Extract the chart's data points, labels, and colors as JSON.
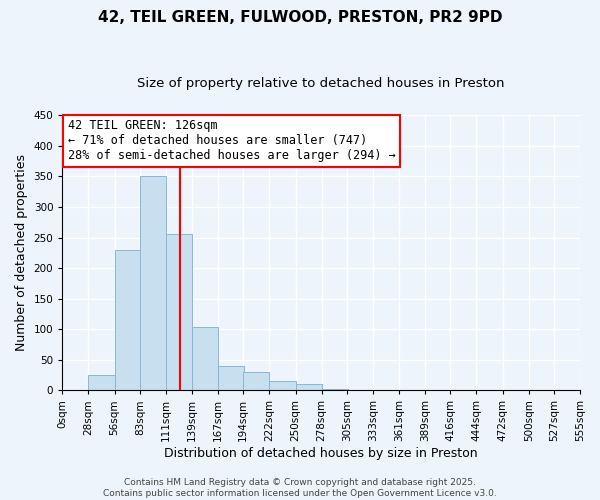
{
  "title": "42, TEIL GREEN, FULWOOD, PRESTON, PR2 9PD",
  "subtitle": "Size of property relative to detached houses in Preston",
  "xlabel": "Distribution of detached houses by size in Preston",
  "ylabel": "Number of detached properties",
  "bar_left_edges": [
    0,
    28,
    56,
    83,
    111,
    139,
    167,
    194,
    222,
    250,
    278,
    305,
    333,
    361,
    389,
    416,
    444,
    472,
    500,
    527
  ],
  "bar_heights": [
    0,
    25,
    230,
    350,
    255,
    103,
    40,
    30,
    15,
    10,
    2,
    0,
    0,
    0,
    0,
    0,
    0,
    0,
    0,
    0
  ],
  "bin_width": 28,
  "bar_color": "#c8dff0",
  "bar_edge_color": "#89b8d4",
  "tick_labels": [
    "0sqm",
    "28sqm",
    "56sqm",
    "83sqm",
    "111sqm",
    "139sqm",
    "167sqm",
    "194sqm",
    "222sqm",
    "250sqm",
    "278sqm",
    "305sqm",
    "333sqm",
    "361sqm",
    "389sqm",
    "416sqm",
    "444sqm",
    "472sqm",
    "500sqm",
    "527sqm",
    "555sqm"
  ],
  "tick_positions": [
    0,
    28,
    56,
    83,
    111,
    139,
    167,
    194,
    222,
    250,
    278,
    305,
    333,
    361,
    389,
    416,
    444,
    472,
    500,
    527,
    555
  ],
  "vline_x": 126,
  "vline_color": "red",
  "ylim": [
    0,
    450
  ],
  "xlim": [
    0,
    555
  ],
  "annotation_title": "42 TEIL GREEN: 126sqm",
  "annotation_line1": "← 71% of detached houses are smaller (747)",
  "annotation_line2": "28% of semi-detached houses are larger (294) →",
  "annotation_box_color": "#ffffff",
  "annotation_box_edge": "red",
  "footer1": "Contains HM Land Registry data © Crown copyright and database right 2025.",
  "footer2": "Contains public sector information licensed under the Open Government Licence v3.0.",
  "bg_color": "#eef4fb",
  "grid_color": "#ffffff",
  "title_fontsize": 11,
  "subtitle_fontsize": 9.5,
  "axis_label_fontsize": 9,
  "tick_fontsize": 7.5,
  "annotation_fontsize": 8.5,
  "footer_fontsize": 6.5,
  "yticks": [
    0,
    50,
    100,
    150,
    200,
    250,
    300,
    350,
    400,
    450
  ]
}
